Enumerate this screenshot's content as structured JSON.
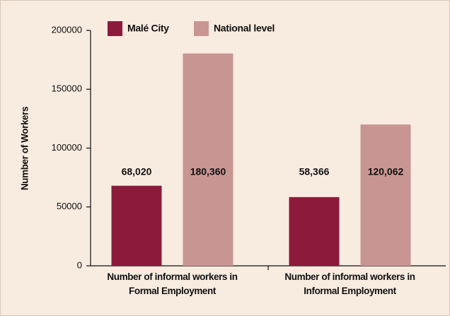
{
  "chart_data": {
    "type": "bar",
    "y_label": "Number of Workers",
    "categories": [
      "Number of informal workers in Formal Employment",
      "Number of informal workers in Informal Employment"
    ],
    "series": [
      {
        "name": "Malé City",
        "color": "#8c1a3b",
        "values": [
          68020,
          58366
        ],
        "value_labels": [
          "68,020",
          "58,366"
        ]
      },
      {
        "name": "National level",
        "color": "#c99593",
        "values": [
          180360,
          120062
        ],
        "value_labels": [
          "180,360",
          "120,062"
        ]
      }
    ],
    "ylim": [
      0,
      200000
    ],
    "yticks": [
      0,
      50000,
      100000,
      150000,
      200000
    ]
  }
}
